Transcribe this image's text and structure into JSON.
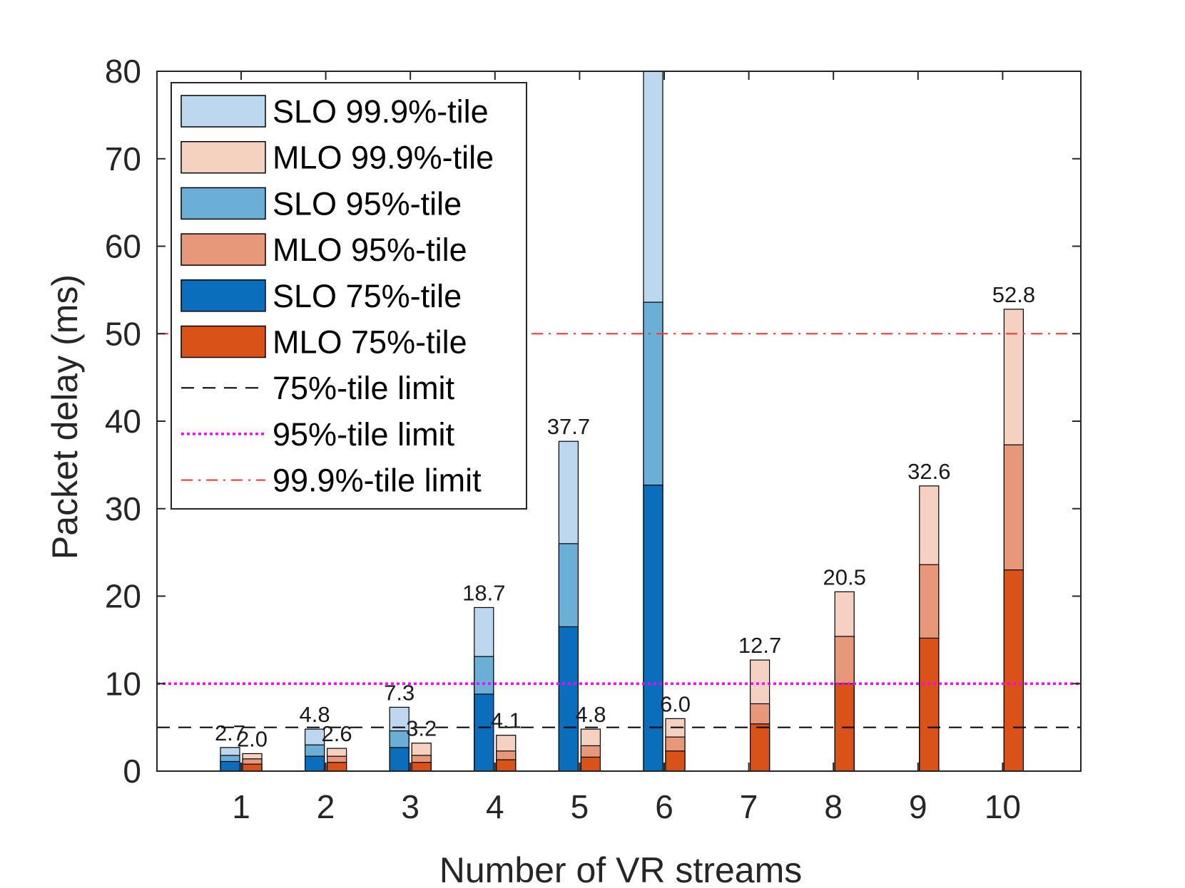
{
  "chart_data": {
    "type": "bar",
    "subtype": "grouped-stacked",
    "xlabel": "Number of VR streams",
    "ylabel": "Packet delay (ms)",
    "categories": [
      "1",
      "2",
      "3",
      "4",
      "5",
      "6",
      "7",
      "8",
      "9",
      "10"
    ],
    "ylim": [
      0,
      80
    ],
    "yticks": [
      0,
      10,
      20,
      30,
      40,
      50,
      60,
      70,
      80
    ],
    "grid": false,
    "legend_position": "top-left",
    "groups": [
      {
        "name": "SLO",
        "p75": [
          1.1,
          1.7,
          2.7,
          8.8,
          16.5,
          32.7,
          null,
          null,
          null,
          null
        ],
        "p95": [
          1.8,
          3.0,
          4.6,
          13.1,
          26.0,
          53.6,
          null,
          null,
          null,
          null
        ],
        "p999": [
          2.7,
          4.8,
          7.3,
          18.7,
          37.7,
          80,
          null,
          null,
          null,
          null
        ],
        "labels": [
          "2.7",
          "4.8",
          "7.3",
          "18.7",
          "37.7",
          "",
          "",
          "",
          "",
          ""
        ]
      },
      {
        "name": "MLO",
        "p75": [
          0.8,
          1.0,
          1.0,
          1.3,
          1.6,
          2.3,
          5.4,
          10.0,
          15.2,
          23.0
        ],
        "p95": [
          1.4,
          1.7,
          1.8,
          2.3,
          2.9,
          3.9,
          7.7,
          15.4,
          23.6,
          37.3
        ],
        "p999": [
          2.0,
          2.6,
          3.2,
          4.1,
          4.8,
          6.0,
          12.7,
          20.5,
          32.6,
          52.8
        ],
        "labels": [
          "2.0",
          "2.6",
          "3.2",
          "4.1",
          "4.8",
          "6.0",
          "12.7",
          "20.5",
          "32.6",
          "52.8"
        ]
      }
    ],
    "reference_lines": [
      {
        "name": "75%-tile limit",
        "y": 5,
        "style": "dashed",
        "color": "#000000"
      },
      {
        "name": "95%-tile limit",
        "y": 10,
        "style": "dotted",
        "color": "#ff00ff"
      },
      {
        "name": "99.9%-tile limit",
        "y": 50,
        "style": "dashdot",
        "color": "#ff3333"
      }
    ],
    "legend": [
      {
        "label": "SLO 99.9%-tile",
        "kind": "box",
        "color": "#bdd7ee"
      },
      {
        "label": "MLO 99.9%-tile",
        "kind": "box",
        "color": "#f4d1c1"
      },
      {
        "label": "SLO 95%-tile",
        "kind": "box",
        "color": "#6baed6"
      },
      {
        "label": "MLO 95%-tile",
        "kind": "box",
        "color": "#e8987a"
      },
      {
        "label": "SLO 75%-tile",
        "kind": "box",
        "color": "#0b6ebd"
      },
      {
        "label": "MLO 75%-tile",
        "kind": "box",
        "color": "#d95319"
      },
      {
        "label": "75%-tile limit",
        "kind": "dashed",
        "color": "#000000"
      },
      {
        "label": "95%-tile limit",
        "kind": "dotted",
        "color": "#ff00ff"
      },
      {
        "label": "99.9%-tile limit",
        "kind": "dashdot",
        "color": "#ff3333"
      }
    ],
    "colors": {
      "SLO": {
        "p75": "#0b6ebd",
        "p95": "#6baed6",
        "p999": "#bdd7ee"
      },
      "MLO": {
        "p75": "#d95319",
        "p95": "#e8987a",
        "p999": "#f4d1c1"
      }
    }
  }
}
